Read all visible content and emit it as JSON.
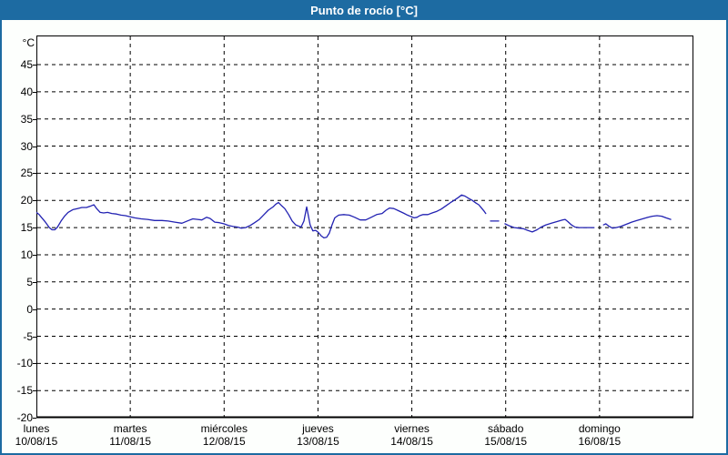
{
  "title": "Punto de rocío [°C]",
  "colors": {
    "header_bg": "#1d6ba2",
    "frame_border": "#1d6ba2",
    "page_bg": "#fdfffd",
    "plot_bg": "#ffffff",
    "grid": "#000000",
    "axis": "#000000",
    "series_line": "#2222b2",
    "title_text": "#ffffff",
    "label_text": "#000000"
  },
  "chart_data": {
    "type": "line",
    "title": "Punto de rocío [°C]",
    "unit_label": "°C",
    "ylabel": "°C",
    "ylim": [
      -20,
      50
    ],
    "yticks": [
      45,
      40,
      35,
      30,
      25,
      20,
      15,
      10,
      5,
      0,
      -5,
      -10,
      -15,
      -20
    ],
    "grid": "dashed",
    "legend": "none",
    "x_axis": {
      "hours_total": 168,
      "days": [
        {
          "name": "lunes",
          "date": "10/08/15"
        },
        {
          "name": "martes",
          "date": "11/08/15"
        },
        {
          "name": "miércoles",
          "date": "12/08/15"
        },
        {
          "name": "jueves",
          "date": "13/08/15"
        },
        {
          "name": "viernes",
          "date": "14/08/15"
        },
        {
          "name": "sábado",
          "date": "15/08/15"
        },
        {
          "name": "domingo",
          "date": "16/08/15"
        }
      ]
    },
    "series": [
      {
        "name": "Punto de rocío",
        "units": "°C",
        "segments": [
          [
            [
              0,
              17.8
            ],
            [
              0.7,
              17.4
            ],
            [
              1.4,
              16.8
            ],
            [
              2.3,
              16.0
            ],
            [
              3.3,
              15.0
            ],
            [
              4.0,
              14.6
            ],
            [
              4.7,
              14.6
            ],
            [
              5.4,
              15.1
            ],
            [
              6.3,
              16.2
            ],
            [
              7.2,
              17.1
            ],
            [
              8.1,
              17.8
            ],
            [
              9.3,
              18.3
            ],
            [
              10.5,
              18.5
            ],
            [
              11.6,
              18.7
            ],
            [
              12.8,
              18.7
            ],
            [
              14.0,
              19.0
            ],
            [
              14.7,
              19.2
            ],
            [
              15.4,
              18.5
            ],
            [
              16.3,
              17.8
            ],
            [
              17.2,
              17.7
            ],
            [
              18.2,
              17.8
            ],
            [
              19.3,
              17.6
            ],
            [
              20.5,
              17.5
            ],
            [
              21.6,
              17.3
            ],
            [
              22.8,
              17.2
            ],
            [
              24.0,
              17.0
            ],
            [
              25.1,
              16.8
            ],
            [
              26.8,
              16.6
            ],
            [
              28.4,
              16.5
            ],
            [
              30.2,
              16.3
            ],
            [
              32.1,
              16.3
            ],
            [
              33.7,
              16.2
            ],
            [
              35.4,
              16.0
            ],
            [
              37.2,
              15.8
            ],
            [
              38.9,
              16.3
            ],
            [
              40.0,
              16.6
            ],
            [
              41.2,
              16.5
            ],
            [
              42.3,
              16.4
            ],
            [
              43.5,
              16.9
            ],
            [
              44.4,
              16.7
            ],
            [
              45.6,
              16.0
            ],
            [
              46.8,
              15.9
            ],
            [
              47.9,
              15.7
            ],
            [
              49.1,
              15.4
            ],
            [
              50.3,
              15.2
            ],
            [
              51.4,
              15.1
            ],
            [
              52.4,
              14.9
            ],
            [
              53.5,
              15.0
            ],
            [
              54.7,
              15.4
            ],
            [
              55.8,
              15.9
            ],
            [
              57.0,
              16.5
            ],
            [
              58.2,
              17.4
            ],
            [
              59.3,
              18.2
            ],
            [
              60.5,
              18.8
            ],
            [
              61.2,
              19.3
            ],
            [
              61.9,
              19.6
            ],
            [
              62.6,
              19.1
            ],
            [
              63.5,
              18.5
            ],
            [
              64.5,
              17.4
            ],
            [
              65.4,
              16.2
            ],
            [
              66.3,
              15.5
            ],
            [
              67.0,
              15.3
            ],
            [
              67.7,
              15.1
            ],
            [
              68.4,
              16.2
            ],
            [
              69.1,
              18.8
            ],
            [
              69.6,
              17.0
            ],
            [
              70.0,
              15.5
            ],
            [
              70.7,
              14.4
            ],
            [
              71.4,
              14.5
            ],
            [
              72.1,
              14.1
            ],
            [
              72.8,
              13.5
            ],
            [
              73.5,
              13.1
            ],
            [
              74.2,
              13.2
            ],
            [
              74.9,
              14.0
            ],
            [
              75.6,
              15.5
            ],
            [
              76.3,
              16.8
            ],
            [
              77.3,
              17.3
            ],
            [
              78.6,
              17.4
            ],
            [
              80.0,
              17.3
            ],
            [
              81.4,
              16.9
            ],
            [
              82.8,
              16.4
            ],
            [
              84.2,
              16.4
            ],
            [
              85.6,
              16.9
            ],
            [
              87.0,
              17.4
            ],
            [
              88.4,
              17.6
            ],
            [
              89.4,
              18.2
            ],
            [
              90.3,
              18.6
            ],
            [
              91.4,
              18.5
            ],
            [
              92.6,
              18.1
            ],
            [
              93.8,
              17.7
            ],
            [
              94.9,
              17.3
            ],
            [
              95.9,
              17.0
            ],
            [
              96.6,
              16.8
            ],
            [
              97.3,
              16.9
            ],
            [
              98.0,
              17.2
            ],
            [
              98.9,
              17.4
            ],
            [
              100.1,
              17.4
            ],
            [
              101.2,
              17.7
            ],
            [
              102.4,
              18.0
            ],
            [
              103.5,
              18.4
            ],
            [
              104.7,
              19.0
            ],
            [
              105.9,
              19.6
            ],
            [
              107.0,
              20.1
            ],
            [
              108.0,
              20.6
            ],
            [
              108.7,
              21.0
            ],
            [
              109.6,
              20.8
            ],
            [
              110.5,
              20.4
            ],
            [
              111.5,
              20.0
            ],
            [
              112.4,
              19.5
            ],
            [
              113.1,
              19.2
            ],
            [
              113.8,
              18.6
            ],
            [
              114.5,
              18.0
            ],
            [
              114.9,
              17.6
            ]
          ],
          [
            [
              116.1,
              16.2
            ],
            [
              118.2,
              16.2
            ]
          ],
          [
            [
              119.8,
              15.7
            ],
            [
              121.0,
              15.3
            ],
            [
              122.2,
              15.0
            ],
            [
              123.3,
              14.9
            ],
            [
              124.5,
              14.8
            ],
            [
              125.6,
              14.5
            ],
            [
              126.8,
              14.2
            ],
            [
              128.0,
              14.6
            ],
            [
              129.1,
              15.1
            ],
            [
              130.3,
              15.5
            ],
            [
              131.7,
              15.8
            ],
            [
              133.1,
              16.1
            ],
            [
              134.5,
              16.4
            ],
            [
              135.2,
              16.5
            ],
            [
              135.9,
              16.1
            ],
            [
              136.8,
              15.5
            ],
            [
              137.7,
              15.1
            ],
            [
              138.7,
              15.0
            ],
            [
              140.1,
              15.0
            ],
            [
              141.5,
              15.0
            ],
            [
              142.6,
              15.0
            ]
          ],
          [
            [
              145.0,
              15.5
            ],
            [
              145.6,
              15.7
            ],
            [
              146.3,
              15.3
            ],
            [
              147.3,
              14.9
            ],
            [
              148.2,
              15.0
            ],
            [
              149.4,
              15.2
            ],
            [
              150.8,
              15.6
            ],
            [
              152.2,
              16.0
            ],
            [
              153.6,
              16.3
            ],
            [
              155.0,
              16.6
            ],
            [
              156.4,
              16.9
            ],
            [
              157.5,
              17.1
            ],
            [
              158.7,
              17.2
            ],
            [
              159.9,
              17.1
            ],
            [
              161.0,
              16.8
            ],
            [
              162.2,
              16.5
            ]
          ]
        ]
      }
    ]
  }
}
